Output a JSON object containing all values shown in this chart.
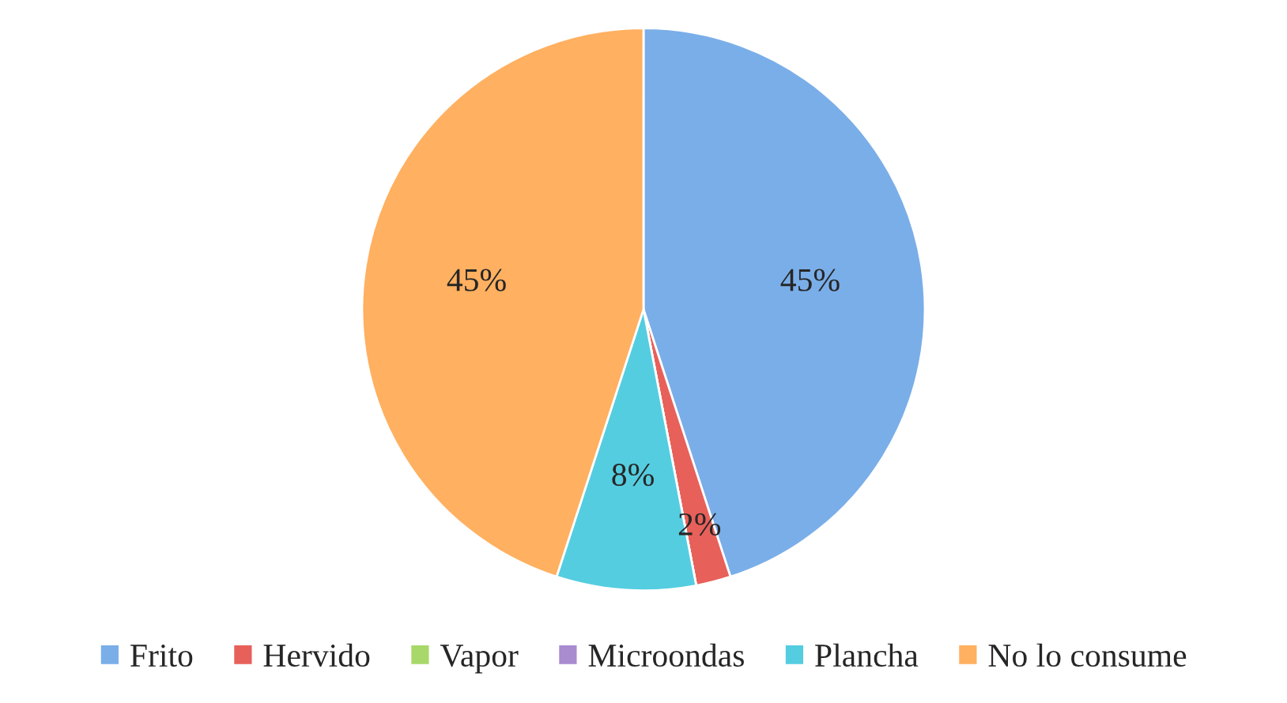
{
  "chart_data": {
    "type": "pie",
    "categories": [
      "Frito",
      "Hervido",
      "Vapor",
      "Microondas",
      "Plancha",
      "No lo consume"
    ],
    "values": [
      45,
      2,
      0,
      0,
      8,
      45
    ],
    "value_labels": [
      "45%",
      "2%",
      null,
      null,
      "8%",
      "45%"
    ],
    "colors": [
      "#7aaee8",
      "#e8605a",
      "#a8d86a",
      "#a98bd0",
      "#55cde0",
      "#ffb060"
    ],
    "legend": "bottom"
  }
}
